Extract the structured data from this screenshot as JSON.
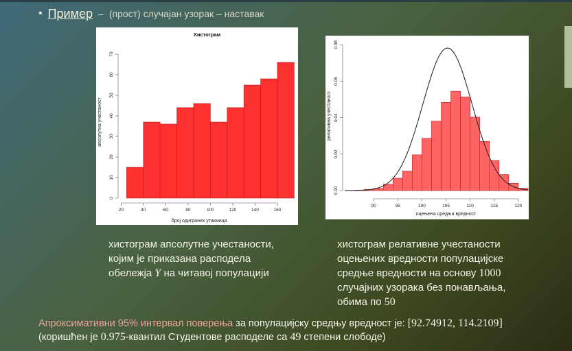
{
  "header": {
    "bullet": "•",
    "title": "Пример",
    "sep": "–",
    "subtitle": "(прост) случајан узорак – наставак"
  },
  "chart_data": [
    {
      "type": "bar",
      "title": "Хистограм",
      "xlabel": "број одиграних утакмица",
      "ylabel": "апсолутна учестаност",
      "bins": [
        [
          25,
          40
        ],
        [
          40,
          55
        ],
        [
          55,
          70
        ],
        [
          70,
          85
        ],
        [
          85,
          100
        ],
        [
          100,
          115
        ],
        [
          115,
          130
        ],
        [
          130,
          145
        ],
        [
          145,
          160
        ],
        [
          160,
          175
        ]
      ],
      "values": [
        15,
        37,
        36,
        44,
        46,
        37,
        44,
        55,
        58,
        66
      ],
      "xlim": [
        18,
        176
      ],
      "ylim": [
        0,
        74
      ],
      "xticks": [
        20,
        40,
        60,
        80,
        100,
        120,
        140,
        160
      ],
      "yticks": [
        0,
        10,
        20,
        30,
        40,
        50,
        60,
        70
      ],
      "color": "#ff3030",
      "grid": false
    },
    {
      "type": "bar",
      "title": "",
      "xlabel": "оцењена средња вредност",
      "ylabel": "релативна учестаност",
      "bins": [
        [
          86,
          88
        ],
        [
          88,
          90
        ],
        [
          90,
          92
        ],
        [
          92,
          94
        ],
        [
          94,
          96
        ],
        [
          96,
          98
        ],
        [
          98,
          100
        ],
        [
          100,
          102
        ],
        [
          102,
          104
        ],
        [
          104,
          106
        ],
        [
          106,
          108
        ],
        [
          108,
          110
        ],
        [
          110,
          112
        ],
        [
          112,
          114
        ],
        [
          114,
          116
        ],
        [
          116,
          118
        ],
        [
          118,
          120
        ],
        [
          120,
          122
        ]
      ],
      "values": [
        0.0002,
        0.0006,
        0.0012,
        0.0035,
        0.0068,
        0.0107,
        0.0196,
        0.0287,
        0.0381,
        0.0484,
        0.0545,
        0.0514,
        0.0403,
        0.027,
        0.0165,
        0.0088,
        0.004,
        0.0013
      ],
      "curve": {
        "mean": 105.3,
        "sd": 5.1
      },
      "xlim": [
        84,
        122
      ],
      "ylim": [
        0,
        0.082
      ],
      "xticks": [
        90,
        95,
        100,
        105,
        110,
        115,
        120
      ],
      "yticks": [
        0.0,
        0.02,
        0.04,
        0.06,
        0.08
      ],
      "yticklabels": [
        "0.00",
        "0.02",
        "0.04",
        "0.06",
        "0.08"
      ],
      "color": "#ff6464",
      "grid": false
    }
  ],
  "caption_left": {
    "line1": "хистограм апсолутне учестаности,",
    "line2": "којим је приказана расподела",
    "line3a": "обележја ",
    "line3var": "Y",
    "line3b": " на читавој популацији"
  },
  "caption_right": {
    "line1": "хистограм релативне учестаности",
    "line2": "оцењених вредности популацијске",
    "line3a": "средње вредности на основу ",
    "line3num": "1000",
    "line4": "случајних узорака без понављања,",
    "line5a": "обима по ",
    "line5num": "50"
  },
  "bottom": {
    "accent": "Апроксимативни 95% интервал поверења",
    "rest": " за популацијску средњу вредност је: ",
    "interval": "[92.74912, 114.2109]",
    "line2a": "(коришћен је ",
    "q": "0.975",
    "line2b": "-квантил Студентове расподеле са ",
    "df": "49",
    "line2c": " степени слободе)"
  }
}
